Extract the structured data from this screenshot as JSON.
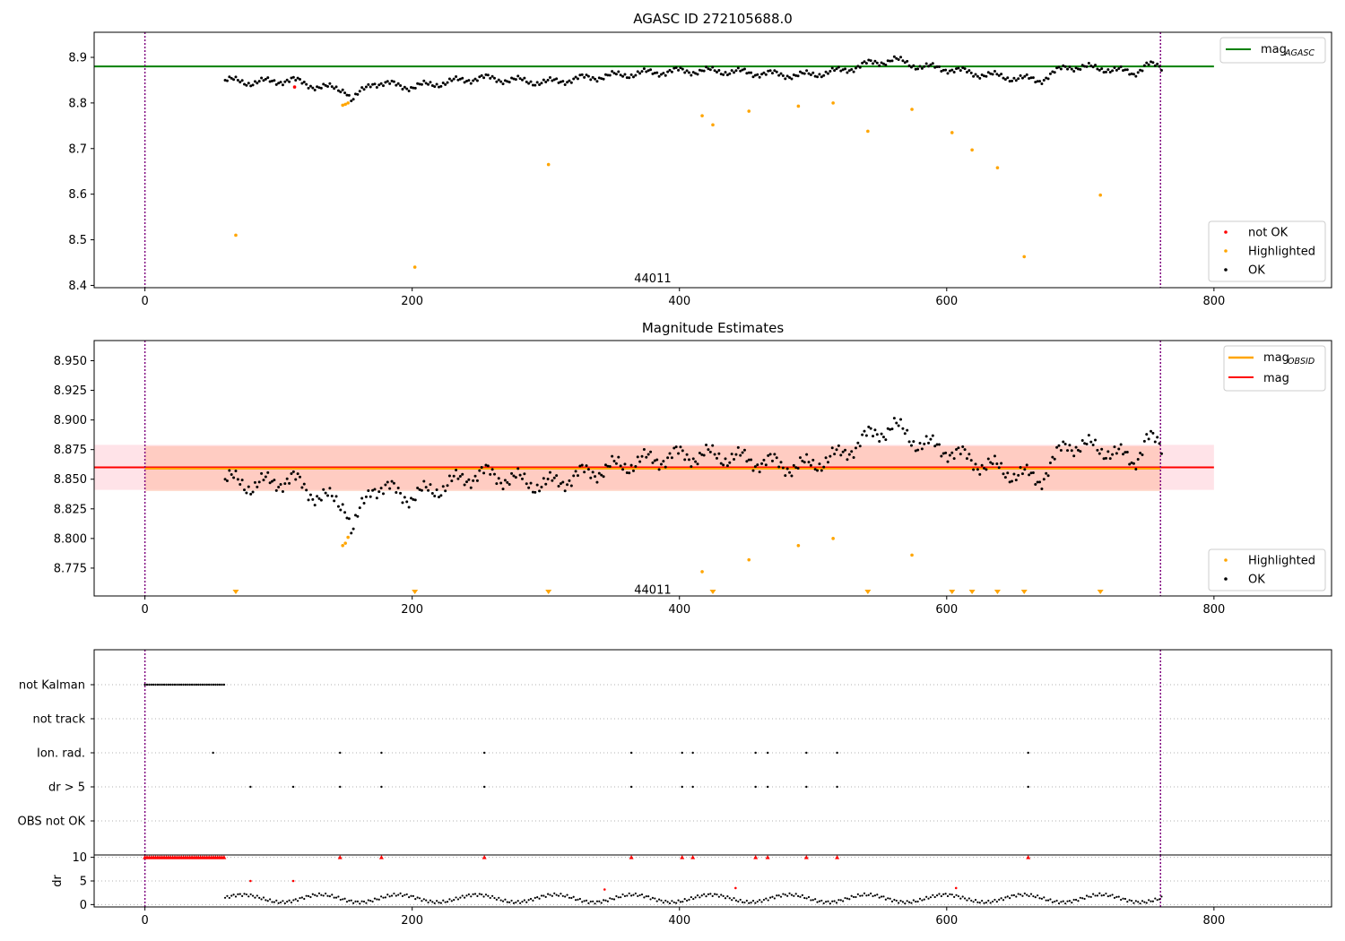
{
  "figure": {
    "top_title": "AGASC ID 272105688.0",
    "mid_title": "Magnitude Estimates",
    "obsid_label": "44011"
  },
  "colors": {
    "ok": "#000000",
    "not_ok": "#ff0000",
    "highlighted": "#ffa500",
    "mag_agasc": "#008000",
    "mag": "#ff0000",
    "mag_obsid": "#ffa500",
    "band_pink": "#ffc0cb",
    "band_orange": "#ffa07a",
    "boundary": "#800080",
    "grid": "#b0b0b0"
  },
  "chart_data": [
    {
      "type": "scatter",
      "title": "AGASC ID 272105688.0",
      "xlim": [
        -38,
        888
      ],
      "ylim": [
        8.395,
        8.955
      ],
      "xticks": [
        0,
        200,
        400,
        600,
        800
      ],
      "yticks": [
        8.4,
        8.5,
        8.6,
        8.7,
        8.8,
        8.9
      ],
      "legend_top": {
        "placement": "top-right",
        "entries": [
          {
            "label": "mag",
            "subscript": "AGASC",
            "color": "#008000"
          }
        ]
      },
      "legend_bottom": {
        "placement": "bottom-right",
        "entries": [
          {
            "label": "not OK",
            "color": "#ff0000"
          },
          {
            "label": "Highlighted",
            "color": "#ffa500"
          },
          {
            "label": "OK",
            "color": "#000000"
          }
        ]
      },
      "hlines": [
        {
          "y": 8.88,
          "color": "#008000",
          "xmax": 800
        }
      ],
      "vlines": [
        0,
        760
      ],
      "annotation": {
        "text": "44011",
        "x": 380,
        "y": 8.415
      },
      "ok_points": {
        "x_start": 60,
        "x_end": 762,
        "step": 1.6,
        "anchors": [
          [
            60,
            8.85
          ],
          [
            80,
            8.845
          ],
          [
            110,
            8.85
          ],
          [
            130,
            8.835
          ],
          [
            150,
            8.83
          ],
          [
            155,
            8.805
          ],
          [
            170,
            8.845
          ],
          [
            200,
            8.835
          ],
          [
            250,
            8.855
          ],
          [
            300,
            8.845
          ],
          [
            330,
            8.855
          ],
          [
            370,
            8.865
          ],
          [
            400,
            8.87
          ],
          [
            430,
            8.87
          ],
          [
            460,
            8.865
          ],
          [
            490,
            8.86
          ],
          [
            520,
            8.87
          ],
          [
            540,
            8.885
          ],
          [
            560,
            8.895
          ],
          [
            580,
            8.88
          ],
          [
            600,
            8.875
          ],
          [
            620,
            8.865
          ],
          [
            650,
            8.855
          ],
          [
            670,
            8.85
          ],
          [
            690,
            8.88
          ],
          [
            720,
            8.875
          ],
          [
            740,
            8.865
          ],
          [
            750,
            8.885
          ],
          [
            762,
            8.875
          ]
        ]
      },
      "not_ok_points": [
        [
          112,
          8.835
        ]
      ],
      "highlighted_points": [
        [
          68,
          8.51
        ],
        [
          148,
          8.795
        ],
        [
          150,
          8.797
        ],
        [
          152,
          8.8
        ],
        [
          202,
          8.44
        ],
        [
          302,
          8.665
        ],
        [
          417,
          8.772
        ],
        [
          425,
          8.752
        ],
        [
          452,
          8.782
        ],
        [
          489,
          8.793
        ],
        [
          515,
          8.8
        ],
        [
          541,
          8.738
        ],
        [
          574,
          8.786
        ],
        [
          604,
          8.735
        ],
        [
          619,
          8.697
        ],
        [
          638,
          8.658
        ],
        [
          658,
          8.463
        ],
        [
          715,
          8.598
        ]
      ]
    },
    {
      "type": "scatter",
      "title": "Magnitude Estimates",
      "xlim": [
        -38,
        888
      ],
      "ylim": [
        8.7515,
        8.967
      ],
      "xticks": [
        0,
        200,
        400,
        600,
        800
      ],
      "yticks": [
        8.775,
        8.8,
        8.825,
        8.85,
        8.875,
        8.9,
        8.925,
        8.95
      ],
      "ytick_labels": [
        "8.775",
        "8.800",
        "8.825",
        "8.850",
        "8.875",
        "8.900",
        "8.925",
        "8.950"
      ],
      "legend_top": {
        "placement": "top-right",
        "entries": [
          {
            "label": "mag",
            "subscript": "OBSID",
            "color": "#ffa500"
          },
          {
            "label": "mag",
            "color": "#ff0000"
          }
        ]
      },
      "legend_bottom": {
        "placement": "bottom-right",
        "entries": [
          {
            "label": "Highlighted",
            "color": "#ffa500"
          },
          {
            "label": "OK",
            "color": "#000000"
          }
        ]
      },
      "mag": 8.86,
      "mag_band": [
        8.841,
        8.879
      ],
      "mag_obsid": 8.859,
      "obsid_band": [
        8.84,
        8.878
      ],
      "vlines": [
        0,
        760
      ],
      "annotation": {
        "text": "44011",
        "x": 380,
        "y": 8.7565
      },
      "highlighted_points": [
        [
          148,
          8.794
        ],
        [
          150,
          8.796
        ],
        [
          152,
          8.801
        ],
        [
          417,
          8.772
        ],
        [
          452,
          8.782
        ],
        [
          489,
          8.794
        ],
        [
          515,
          8.8
        ],
        [
          574,
          8.786
        ]
      ],
      "offscale_markers": [
        68,
        202,
        302,
        425,
        541,
        604,
        619,
        638,
        658,
        715
      ]
    },
    {
      "type": "scatter",
      "xlim": [
        -38,
        888
      ],
      "xticks": [
        0,
        200,
        400,
        600,
        800
      ],
      "flag_rows": [
        "not Kalman",
        "not track",
        "Ion. rad.",
        "dr > 5",
        "OBS not OK"
      ],
      "not_kalman_range": [
        0,
        60
      ],
      "ion_rad_x": [
        51,
        146,
        177,
        254,
        364,
        402,
        410,
        457,
        466,
        495,
        518,
        661
      ],
      "dr_gt5_x": [
        79,
        111,
        146,
        177,
        254,
        364,
        402,
        410,
        457,
        466,
        495,
        518,
        661
      ],
      "vlines": [
        0,
        760
      ]
    },
    {
      "type": "scatter",
      "ylabel": "dr",
      "xlim": [
        -38,
        888
      ],
      "ylim": [
        -0.5,
        10.5
      ],
      "yticks": [
        0,
        5,
        10
      ],
      "xticks": [
        0,
        200,
        400,
        600,
        800
      ],
      "dr_range": [
        0,
        2.8
      ],
      "clipped_x": [
        146,
        177,
        254,
        364,
        402,
        410,
        457,
        466,
        495,
        518,
        661
      ],
      "not_ok_dr_points": [
        [
          79,
          5
        ],
        [
          111,
          5
        ],
        [
          344,
          3.2
        ],
        [
          442,
          3.5
        ],
        [
          607,
          3.5
        ]
      ],
      "vlines": [
        0,
        760
      ]
    }
  ]
}
